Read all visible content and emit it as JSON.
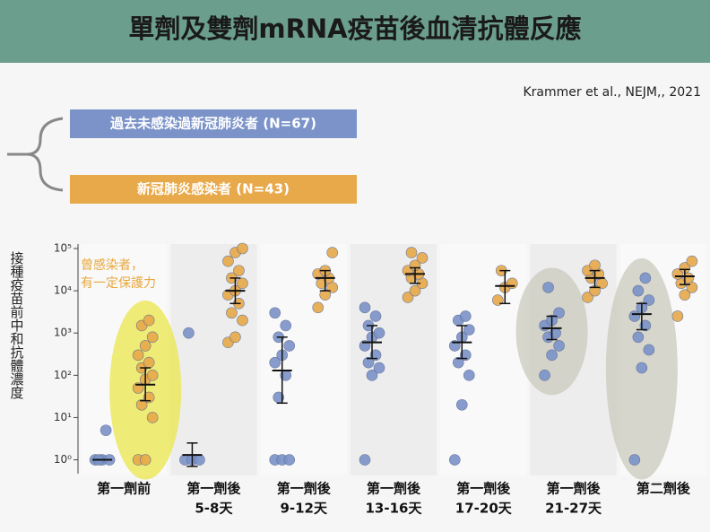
{
  "chart_data": {
    "type": "strip",
    "title": "單劑及雙劑mRNA疫苗後血清抗體反應",
    "source": "Krammer et al., NEJM,, 2021",
    "y_label": "接種疫苗前中和抗體濃度",
    "annotation": [
      "曾感染者，",
      "有一定保護力"
    ],
    "log_scale": true,
    "ylim": [
      0.6,
      100000
    ],
    "yticks": [
      {
        "value": 1,
        "label": "10⁰"
      },
      {
        "value": 10,
        "label": "10¹"
      },
      {
        "value": 100,
        "label": "10²"
      },
      {
        "value": 1000,
        "label": "10³"
      },
      {
        "value": 10000,
        "label": "10⁴"
      },
      {
        "value": 100000,
        "label": "10⁵"
      }
    ],
    "categories": [
      [
        "第一劑前"
      ],
      [
        "第一劑後",
        "5-8天"
      ],
      [
        "第一劑後",
        "9-12天"
      ],
      [
        "第一劑後",
        "13-16天"
      ],
      [
        "第一劑後",
        "17-20天"
      ],
      [
        "第一劑後",
        "21-27天"
      ],
      [
        "第二劑後"
      ]
    ],
    "highlights": [
      {
        "category": 0,
        "series": 1,
        "color": "#e9e64a"
      },
      {
        "category": 5,
        "series": 0,
        "color": "#c9c9bd"
      },
      {
        "category": 6,
        "series": 0,
        "color": "#c9c9bd"
      }
    ],
    "series": [
      {
        "name": "過去未感染過新冠肺炎者 (N=67)",
        "color": "#7b93c9",
        "values": [
          1,
          1.3,
          130,
          600,
          600,
          1300,
          2800
        ],
        "ci_low": [
          1,
          0.7,
          22,
          250,
          250,
          700,
          1200
        ],
        "ci_high": [
          1,
          2.5,
          800,
          1500,
          1500,
          2500,
          5000
        ],
        "points": [
          [
            1,
            1,
            1,
            1,
            5
          ],
          [
            1,
            1,
            1,
            1000
          ],
          [
            1,
            1,
            1,
            30,
            100,
            200,
            300,
            500,
            800,
            1500,
            3000
          ],
          [
            1,
            100,
            150,
            200,
            300,
            500,
            800,
            1000,
            1500,
            2500,
            4000
          ],
          [
            1,
            20,
            100,
            200,
            300,
            500,
            800,
            1200,
            2000,
            2500
          ],
          [
            100,
            300,
            500,
            800,
            1000,
            1500,
            2000,
            3000,
            12000
          ],
          [
            1,
            150,
            400,
            800,
            1500,
            2500,
            4000,
            6000,
            10000,
            20000
          ]
        ]
      },
      {
        "name": "新冠肺炎感染者 (N=43)",
        "color": "#e8a94a",
        "values": [
          60,
          10000,
          20000,
          25000,
          13000,
          20000,
          22000
        ],
        "ci_low": [
          25,
          5000,
          10000,
          15000,
          5000,
          12000,
          14000
        ],
        "ci_high": [
          150,
          20000,
          30000,
          35000,
          30000,
          30000,
          32000
        ],
        "points": [
          [
            1,
            1,
            10,
            20,
            30,
            50,
            80,
            100,
            150,
            200,
            300,
            500,
            800,
            1500,
            2000
          ],
          [
            600,
            800,
            2000,
            3000,
            5000,
            8000,
            10000,
            15000,
            20000,
            30000,
            50000,
            80000,
            100000
          ],
          [
            4000,
            8000,
            12000,
            15000,
            20000,
            25000,
            30000,
            80000
          ],
          [
            7000,
            10000,
            15000,
            20000,
            25000,
            30000,
            40000,
            60000,
            80000
          ],
          [
            6000,
            12000,
            15000,
            30000
          ],
          [
            7000,
            10000,
            15000,
            20000,
            25000,
            30000,
            40000
          ],
          [
            2500,
            8000,
            12000,
            15000,
            20000,
            25000,
            35000,
            50000
          ]
        ]
      }
    ]
  }
}
